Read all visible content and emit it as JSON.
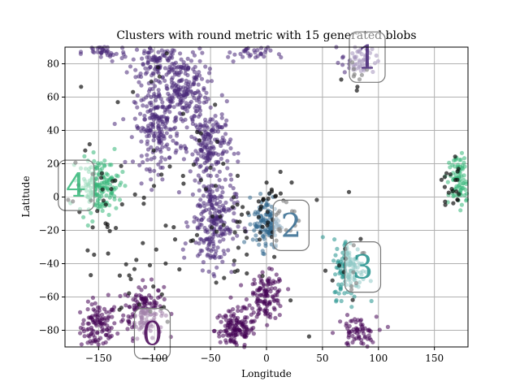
{
  "chart_data": {
    "type": "scatter",
    "title": "Clusters with round metric with 15 generated blobs",
    "xlabel": "Longitude",
    "ylabel": "Latitude",
    "xlim": [
      -180,
      180
    ],
    "ylim": [
      -90,
      90
    ],
    "xticks": [
      -150,
      -100,
      -50,
      0,
      50,
      100,
      150
    ],
    "yticks": [
      -80,
      -60,
      -40,
      -20,
      0,
      20,
      40,
      60,
      80
    ],
    "xtick_labels": [
      "−150",
      "−100",
      "−50",
      "0",
      "50",
      "100",
      "150"
    ],
    "ytick_labels": [
      "−80",
      "−60",
      "−40",
      "−20",
      "0",
      "20",
      "40",
      "60",
      "80"
    ],
    "grid": true,
    "noise_color": "#111111",
    "cluster_labels": [
      {
        "label": "0",
        "x": -102,
        "y": -82,
        "color": "#440154"
      },
      {
        "label": "1",
        "x": 90,
        "y": 84,
        "color": "#482878"
      },
      {
        "label": "2",
        "x": 22,
        "y": -17,
        "color": "#31688e"
      },
      {
        "label": "3",
        "x": 86,
        "y": -42,
        "color": "#21918c"
      },
      {
        "label": "4",
        "x": -170,
        "y": 7,
        "color": "#35b779"
      }
    ],
    "blobs": [
      {
        "cluster": "0",
        "x": -150,
        "y": -78,
        "sx": 8,
        "sy": 7,
        "n": 110
      },
      {
        "cluster": "0",
        "x": -110,
        "y": -68,
        "sx": 9,
        "sy": 8,
        "n": 150
      },
      {
        "cluster": "0",
        "x": -28,
        "y": -80,
        "sx": 9,
        "sy": 6,
        "n": 140
      },
      {
        "cluster": "0",
        "x": 0,
        "y": -60,
        "sx": 8,
        "sy": 7,
        "n": 120
      },
      {
        "cluster": "0",
        "x": 80,
        "y": -82,
        "sx": 9,
        "sy": 5,
        "n": 70
      },
      {
        "cluster": "1",
        "x": -145,
        "y": 87,
        "sx": 10,
        "sy": 3,
        "n": 40
      },
      {
        "cluster": "1",
        "x": -100,
        "y": 82,
        "sx": 10,
        "sy": 6,
        "n": 80
      },
      {
        "cluster": "1",
        "x": -75,
        "y": 65,
        "sx": 11,
        "sy": 12,
        "n": 210
      },
      {
        "cluster": "1",
        "x": -98,
        "y": 42,
        "sx": 10,
        "sy": 12,
        "n": 200
      },
      {
        "cluster": "1",
        "x": -50,
        "y": 30,
        "sx": 9,
        "sy": 12,
        "n": 170
      },
      {
        "cluster": "1",
        "x": -48,
        "y": -15,
        "sx": 10,
        "sy": 14,
        "n": 220
      },
      {
        "cluster": "1",
        "x": -15,
        "y": 87,
        "sx": 10,
        "sy": 3,
        "n": 40
      },
      {
        "cluster": "1",
        "x": 83,
        "y": 82,
        "sx": 8,
        "sy": 5,
        "n": 60
      },
      {
        "cluster": "2",
        "x": 0,
        "y": -15,
        "sx": 6,
        "sy": 8,
        "n": 120
      },
      {
        "cluster": "3",
        "x": 74,
        "y": -43,
        "sx": 7,
        "sy": 9,
        "n": 130
      },
      {
        "cluster": "4",
        "x": -150,
        "y": 7,
        "sx": 9,
        "sy": 8,
        "n": 160
      },
      {
        "cluster": "4",
        "x": 172,
        "y": 10,
        "sx": 5,
        "sy": 8,
        "n": 90
      },
      {
        "cluster": "noise",
        "x": -100,
        "y": 30,
        "sx": 40,
        "sy": 35,
        "n": 40
      },
      {
        "cluster": "noise",
        "x": -30,
        "y": -20,
        "sx": 30,
        "sy": 25,
        "n": 50
      },
      {
        "cluster": "noise",
        "x": 5,
        "y": -10,
        "sx": 12,
        "sy": 12,
        "n": 30
      },
      {
        "cluster": "noise",
        "x": -150,
        "y": 0,
        "sx": 12,
        "sy": 15,
        "n": 25
      },
      {
        "cluster": "noise",
        "x": 165,
        "y": 5,
        "sx": 8,
        "sy": 10,
        "n": 20
      },
      {
        "cluster": "noise",
        "x": 70,
        "y": -40,
        "sx": 10,
        "sy": 12,
        "n": 15
      },
      {
        "cluster": "noise",
        "x": -120,
        "y": -55,
        "sx": 20,
        "sy": 12,
        "n": 20
      },
      {
        "cluster": "noise",
        "x": 80,
        "y": 70,
        "sx": 8,
        "sy": 6,
        "n": 10
      }
    ]
  }
}
